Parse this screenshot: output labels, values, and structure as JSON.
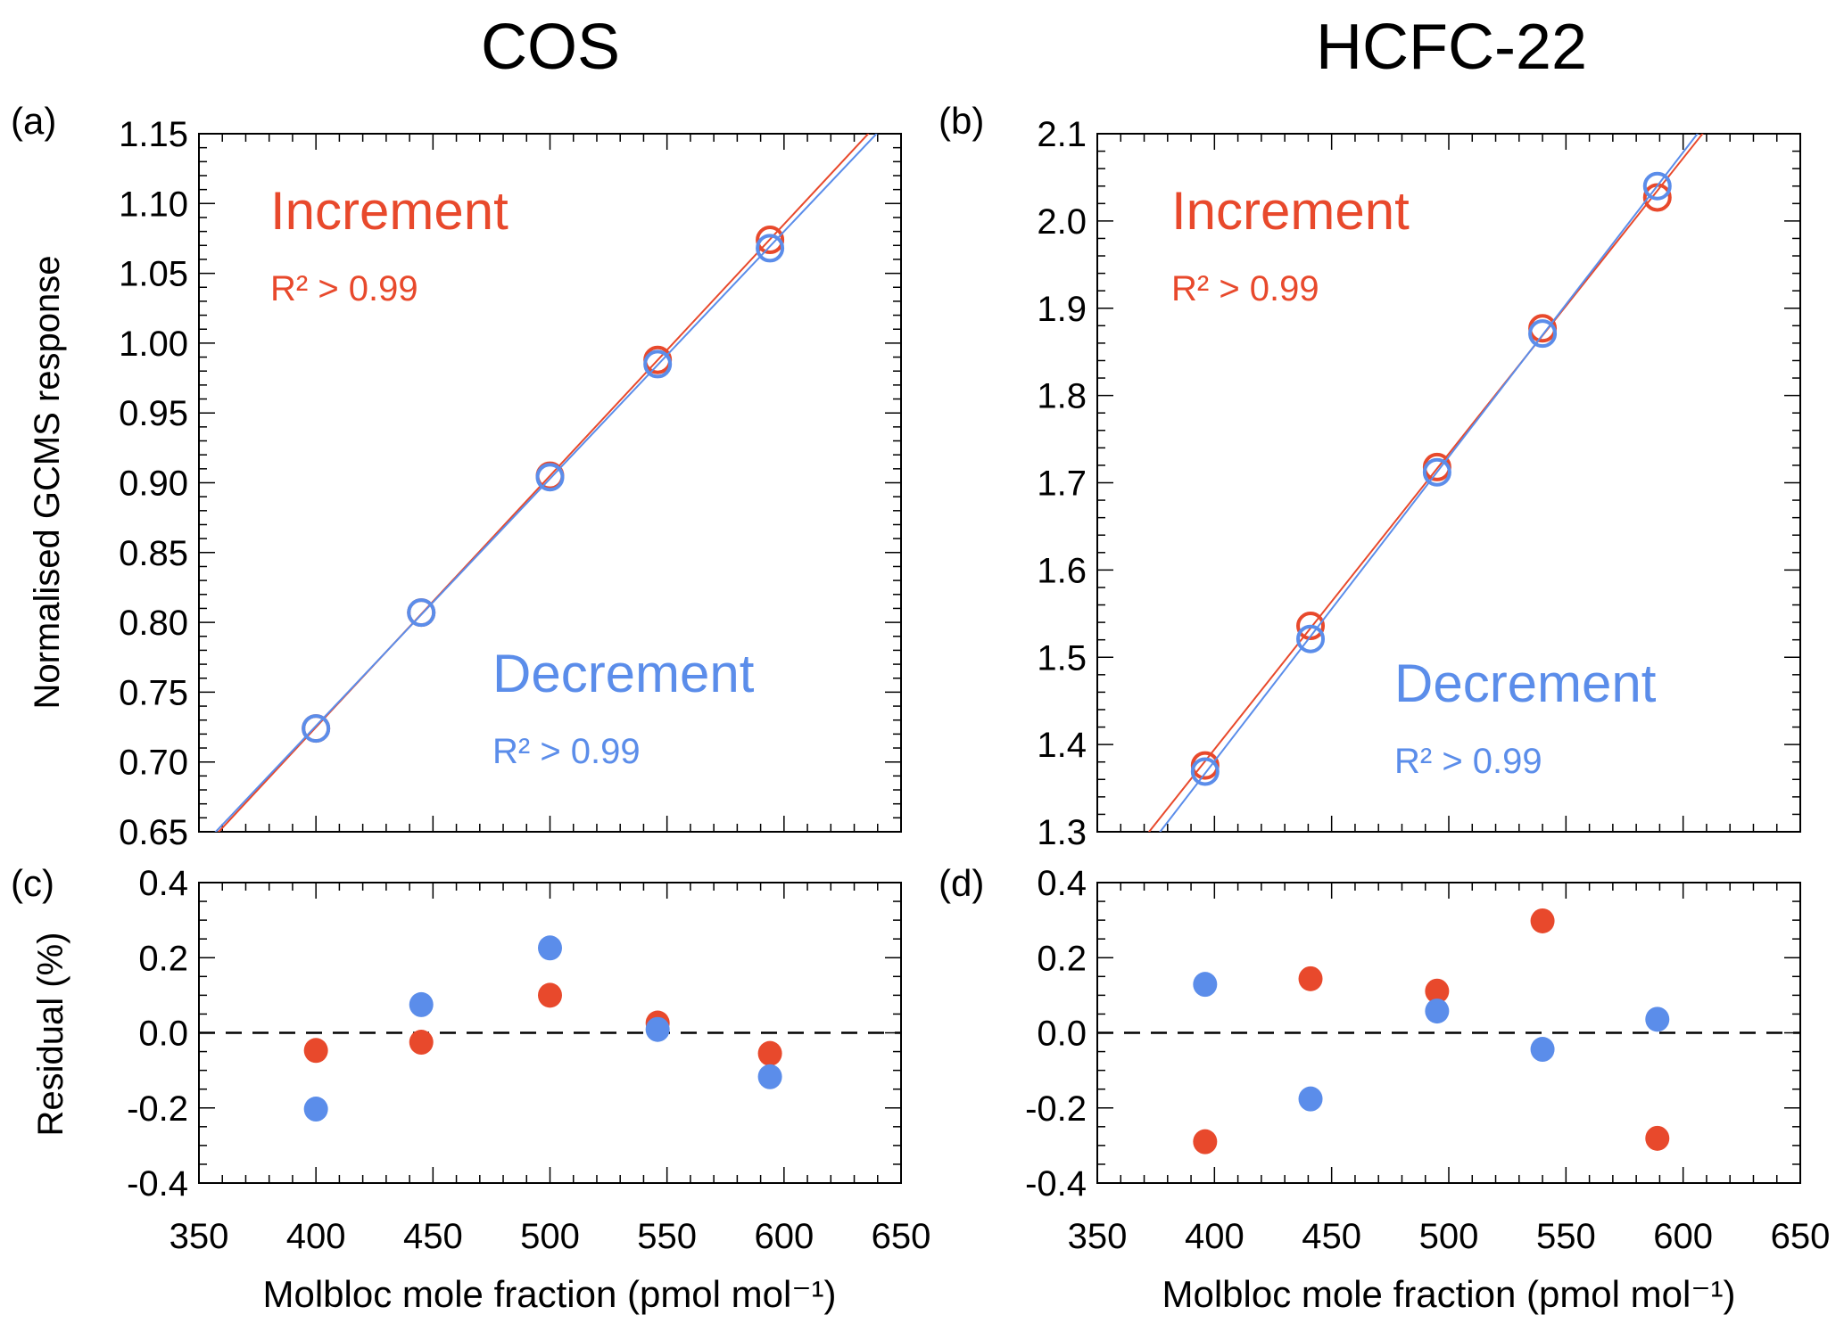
{
  "titles": {
    "left": "COS",
    "right": "HCFC-22"
  },
  "xlabel": "Molbloc mole fraction (pmol mol⁻¹)",
  "ylabel_top": "Normalised GCMS response",
  "ylabel_bottom": "Residual (%)",
  "colors": {
    "increment": "#E8492C",
    "decrement": "#5B8DEA",
    "axis": "#000000"
  },
  "chart_data": [
    {
      "panel": "(a)",
      "type": "scatter",
      "marker": "open-circle",
      "fit": "linear",
      "xlim": [
        350,
        650
      ],
      "ylim": [
        0.65,
        1.15
      ],
      "xticks": [
        350,
        400,
        450,
        500,
        550,
        600,
        650
      ],
      "xminor": 10,
      "yticks": [
        "0.65",
        "0.70",
        "0.75",
        "0.80",
        "0.85",
        "0.90",
        "0.95",
        "1.00",
        "1.05",
        "1.10",
        "1.15"
      ],
      "yminor": 0.01,
      "series": [
        {
          "name": "Increment",
          "annotation": "R² > 0.99",
          "x": [
            400,
            445,
            500,
            546,
            594
          ],
          "y": [
            0.724,
            0.807,
            0.905,
            0.988,
            1.074
          ]
        },
        {
          "name": "Decrement",
          "annotation": "R² > 0.99",
          "x": [
            400,
            445,
            500,
            546,
            594
          ],
          "y": [
            0.724,
            0.807,
            0.904,
            0.985,
            1.068
          ]
        }
      ]
    },
    {
      "panel": "(b)",
      "type": "scatter",
      "marker": "open-circle",
      "fit": "linear",
      "xlim": [
        350,
        650
      ],
      "ylim": [
        1.3,
        2.1
      ],
      "xticks": [
        350,
        400,
        450,
        500,
        550,
        600,
        650
      ],
      "xminor": 10,
      "yticks": [
        "1.3",
        "1.4",
        "1.5",
        "1.6",
        "1.7",
        "1.8",
        "1.9",
        "2.0",
        "2.1"
      ],
      "yminor": 0.02,
      "series": [
        {
          "name": "Increment",
          "annotation": "R² > 0.99",
          "x": [
            396,
            441,
            495,
            540,
            589
          ],
          "y": [
            1.376,
            1.536,
            1.718,
            1.877,
            2.027
          ]
        },
        {
          "name": "Decrement",
          "annotation": "R² > 0.99",
          "x": [
            396,
            441,
            495,
            540,
            589
          ],
          "y": [
            1.369,
            1.521,
            1.712,
            1.871,
            2.04
          ]
        }
      ]
    },
    {
      "panel": "(c)",
      "type": "scatter",
      "marker": "filled-circle",
      "zero_line": "dashed",
      "xlim": [
        350,
        650
      ],
      "ylim": [
        -0.4,
        0.4
      ],
      "xticks": [
        350,
        400,
        450,
        500,
        550,
        600,
        650
      ],
      "xminor": 10,
      "yticks": [
        "-0.4",
        "-0.2",
        "0.0",
        "0.2",
        "0.4"
      ],
      "yminor": 0.05,
      "series": [
        {
          "name": "Increment",
          "x": [
            400,
            445,
            500,
            546,
            594
          ],
          "y": [
            -0.047,
            -0.025,
            0.1,
            0.026,
            -0.055
          ]
        },
        {
          "name": "Decrement",
          "x": [
            400,
            445,
            500,
            546,
            594
          ],
          "y": [
            -0.203,
            0.075,
            0.226,
            0.009,
            -0.117
          ]
        }
      ]
    },
    {
      "panel": "(d)",
      "type": "scatter",
      "marker": "filled-circle",
      "zero_line": "dashed",
      "xlim": [
        350,
        650
      ],
      "ylim": [
        -0.4,
        0.4
      ],
      "xticks": [
        350,
        400,
        450,
        500,
        550,
        600,
        650
      ],
      "xminor": 10,
      "yticks": [
        "-0.4",
        "-0.2",
        "0.0",
        "0.2",
        "0.4"
      ],
      "yminor": 0.05,
      "series": [
        {
          "name": "Increment",
          "x": [
            396,
            441,
            495,
            540,
            589
          ],
          "y": [
            -0.29,
            0.144,
            0.111,
            0.298,
            -0.281
          ]
        },
        {
          "name": "Decrement",
          "x": [
            396,
            441,
            495,
            540,
            589
          ],
          "y": [
            0.129,
            -0.176,
            0.058,
            -0.044,
            0.036
          ]
        }
      ]
    }
  ]
}
